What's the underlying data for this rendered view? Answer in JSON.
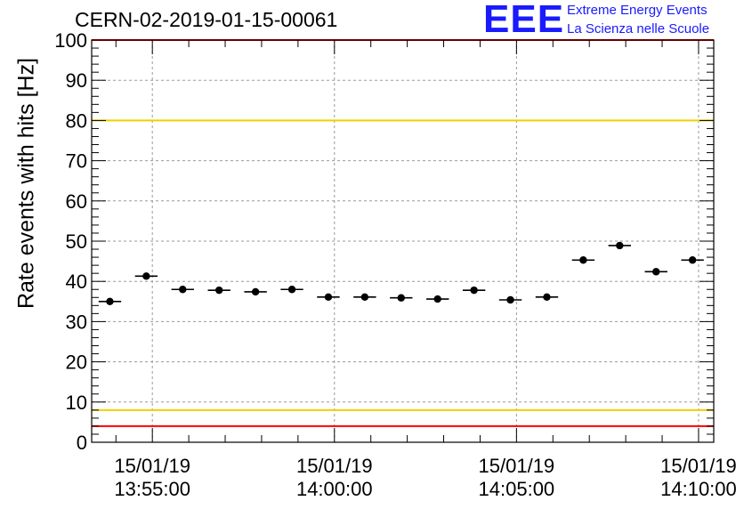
{
  "header": {
    "title": "CERN-02-2019-01-15-00061",
    "logo_mark": "EEE",
    "logo_line1": "Extreme Energy Events",
    "logo_line2": "La Scienza nelle Scuole"
  },
  "colors": {
    "limit_red": "#ff0000",
    "limit_yellow": "#f0d000",
    "logo_blue": "#1a1aff",
    "marker": "#000000",
    "grid": "#9a9a9a"
  },
  "chart_data": {
    "type": "scatter",
    "title": "CERN-02-2019-01-15-00061",
    "ylabel": "Rate events with hits [Hz]",
    "xlabel": "",
    "ylim": [
      0,
      100
    ],
    "yticks": [
      0,
      10,
      20,
      30,
      40,
      50,
      60,
      70,
      80,
      90,
      100
    ],
    "xlim": [
      "13:53:20",
      "14:10:25"
    ],
    "xticks": [
      {
        "date": "15/01/19",
        "time": "13:55:00"
      },
      {
        "date": "15/01/19",
        "time": "14:00:00"
      },
      {
        "date": "15/01/19",
        "time": "14:05:00"
      },
      {
        "date": "15/01/19",
        "time": "14:10:00"
      }
    ],
    "grid": true,
    "limit_lines": [
      {
        "color": "red",
        "y": 100
      },
      {
        "color": "red",
        "y": 4
      },
      {
        "color": "yellow",
        "y": 80
      },
      {
        "color": "yellow",
        "y": 8
      }
    ],
    "bin_width_s": 60,
    "points": [
      {
        "time": "13:53:50",
        "y": 35.0
      },
      {
        "time": "13:54:50",
        "y": 41.3
      },
      {
        "time": "13:55:50",
        "y": 38.0
      },
      {
        "time": "13:56:50",
        "y": 37.8
      },
      {
        "time": "13:57:50",
        "y": 37.4
      },
      {
        "time": "13:58:50",
        "y": 38.0
      },
      {
        "time": "13:59:50",
        "y": 36.1
      },
      {
        "time": "14:00:50",
        "y": 36.1
      },
      {
        "time": "14:01:50",
        "y": 35.9
      },
      {
        "time": "14:02:50",
        "y": 35.6
      },
      {
        "time": "14:03:50",
        "y": 37.8
      },
      {
        "time": "14:04:50",
        "y": 35.4
      },
      {
        "time": "14:05:50",
        "y": 36.1
      },
      {
        "time": "14:06:50",
        "y": 45.3
      },
      {
        "time": "14:07:50",
        "y": 48.9
      },
      {
        "time": "14:08:50",
        "y": 42.4
      },
      {
        "time": "14:09:50",
        "y": 45.3
      }
    ]
  }
}
